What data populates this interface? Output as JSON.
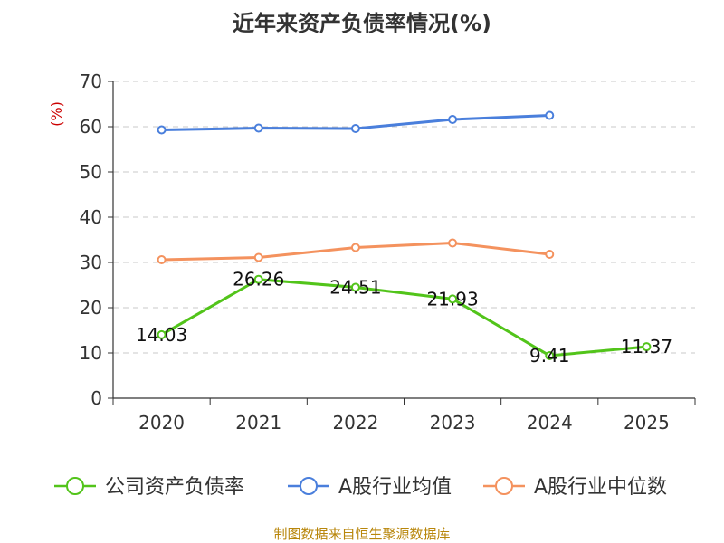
{
  "chart_data": {
    "type": "line",
    "title": "近年来资产负债率情况(%)",
    "ylabel": "(%)",
    "xlabel": "",
    "ylim": [
      0,
      70
    ],
    "yticks": [
      0,
      10,
      20,
      30,
      40,
      50,
      60,
      70
    ],
    "grid": true,
    "legend_position": "bottom",
    "categories": [
      "2020",
      "2021",
      "2022",
      "2023",
      "2024",
      "2025"
    ],
    "series": [
      {
        "name": "公司资产负债率",
        "color": "#52c41a",
        "values": [
          14.03,
          26.26,
          24.51,
          21.93,
          9.41,
          11.37
        ],
        "labels": [
          "14.03",
          "26.26",
          "24.51",
          "21.93",
          "9.41",
          "11.37"
        ]
      },
      {
        "name": "A股行业均值",
        "color": "#4a7fdc",
        "values": [
          59.3,
          59.7,
          59.6,
          61.6,
          62.5,
          null
        ]
      },
      {
        "name": "A股行业中位数",
        "color": "#f4925e",
        "values": [
          30.6,
          31.1,
          33.3,
          34.3,
          31.8,
          null
        ]
      }
    ]
  },
  "footer": {
    "source": "制图数据来自恒生聚源数据库"
  }
}
